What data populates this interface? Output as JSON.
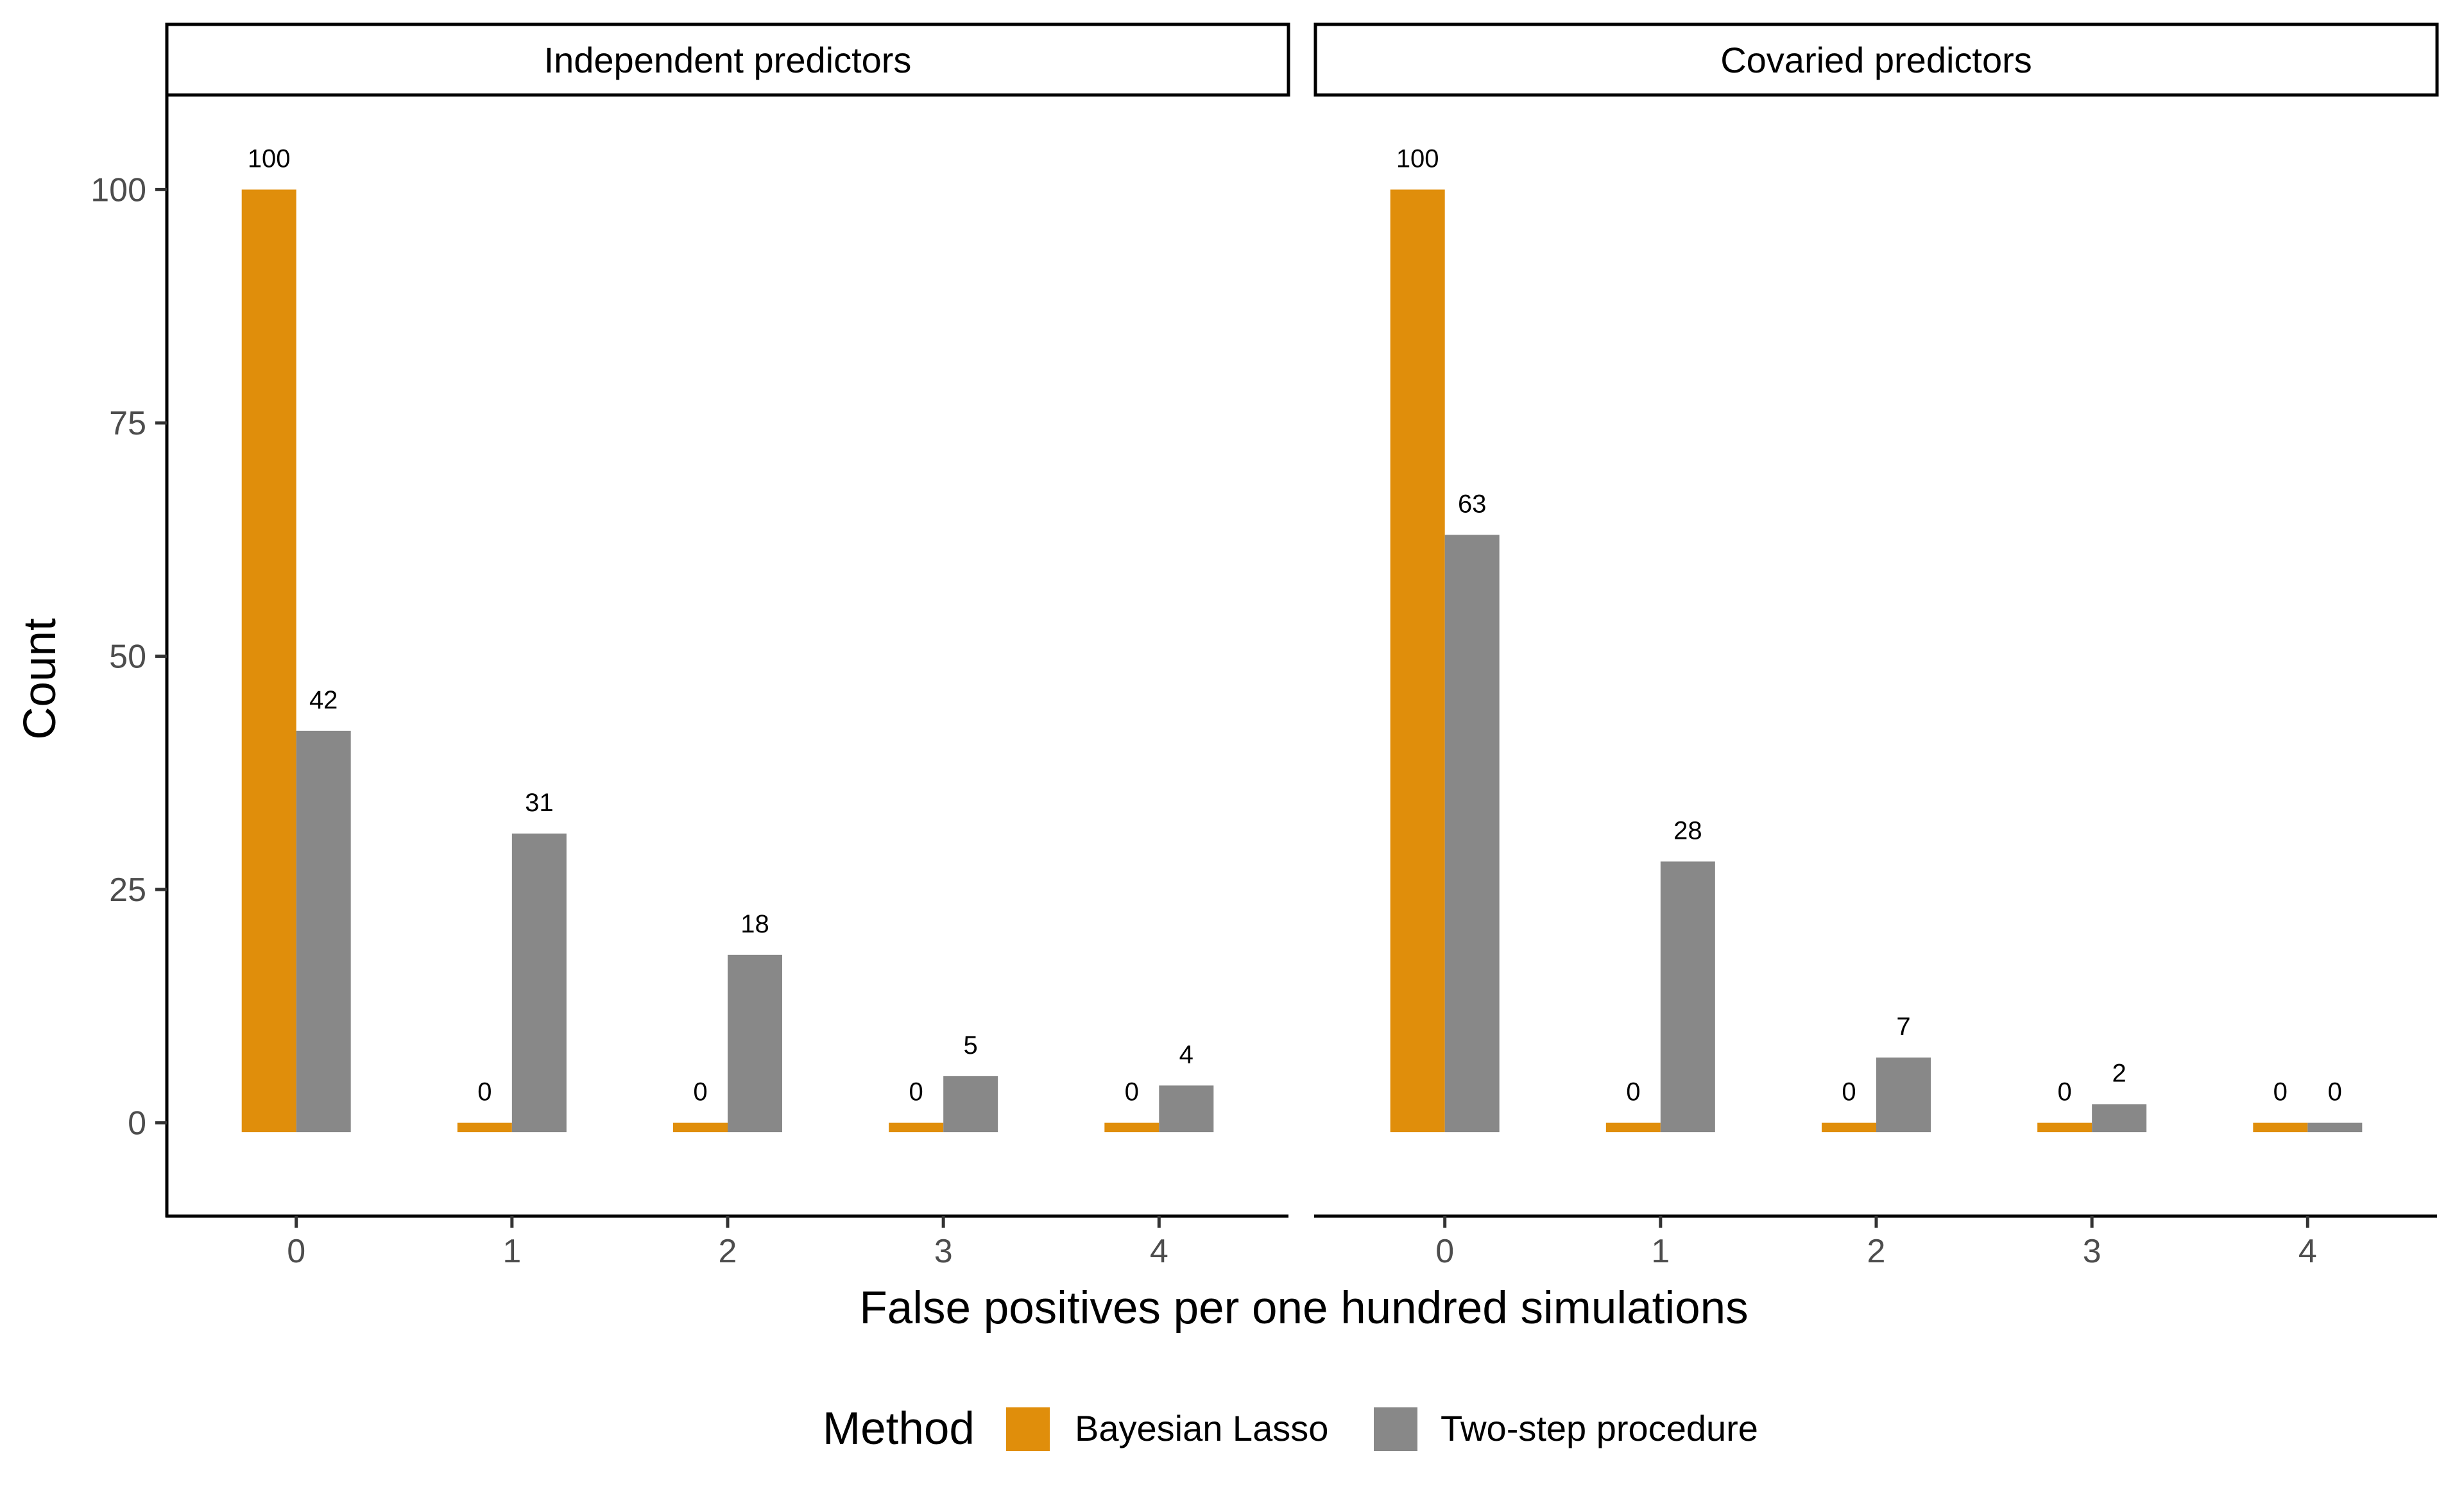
{
  "chart_data": {
    "type": "bar",
    "xlabel": "False positives per one hundred simulations",
    "ylabel": "Count",
    "ylim": [
      -10,
      110
    ],
    "yticks": [
      0,
      25,
      50,
      75,
      100
    ],
    "categories": [
      "0",
      "1",
      "2",
      "3",
      "4"
    ],
    "legend": {
      "title": "Method",
      "position": "bottom"
    },
    "grid": false,
    "panels": [
      {
        "title": "Independent predictors",
        "series": [
          {
            "name": "Bayesian Lasso",
            "values": [
              100,
              0,
              0,
              0,
              0
            ],
            "color": "#E08E0B"
          },
          {
            "name": "Two-step procedure",
            "values": [
              42,
              31,
              18,
              5,
              4
            ],
            "color": "#888888"
          }
        ]
      },
      {
        "title": "Covaried predictors",
        "series": [
          {
            "name": "Bayesian Lasso",
            "values": [
              100,
              0,
              0,
              0,
              0
            ],
            "color": "#E08E0B"
          },
          {
            "name": "Two-step procedure",
            "values": [
              63,
              28,
              7,
              2,
              0
            ],
            "color": "#888888"
          }
        ]
      }
    ]
  }
}
